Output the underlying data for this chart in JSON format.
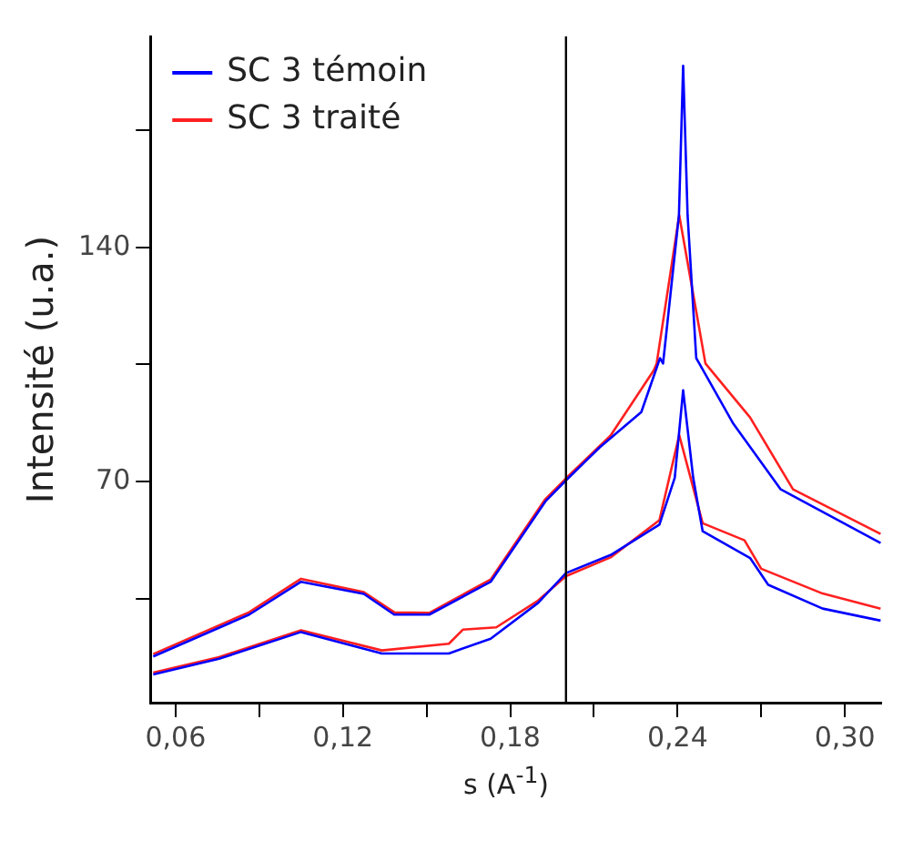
{
  "chart_data": {
    "type": "line",
    "xlabel": "s (A$^{-1}$)",
    "ylabel": "Intensité (u.a.)",
    "xlim": [
      0.051,
      0.313
    ],
    "ylim": [
      4,
      203
    ],
    "xticks": [
      {
        "value": 0.06,
        "label": "0,06"
      },
      {
        "value": 0.09,
        "label": null
      },
      {
        "value": 0.12,
        "label": "0,12"
      },
      {
        "value": 0.15,
        "label": null
      },
      {
        "value": 0.18,
        "label": "0,18"
      },
      {
        "value": 0.21,
        "label": null
      },
      {
        "value": 0.24,
        "label": "0,24"
      },
      {
        "value": 0.27,
        "label": null
      },
      {
        "value": 0.3,
        "label": "0,30"
      }
    ],
    "yticks": [
      {
        "value": 35,
        "label": null
      },
      70,
      {
        "value": 105,
        "label": null
      },
      140,
      {
        "value": 175,
        "label": null
      }
    ],
    "grid": false,
    "legend": "top left",
    "marker": "none",
    "line_style": "solid",
    "ref_lines": [
      {
        "axis": "x",
        "value": 0.2,
        "color": "#000000"
      }
    ],
    "series": [
      {
        "name": "SC 3 témoin",
        "color": "#0000ff",
        "x": [
          0.052,
          0.0864,
          0.105,
          0.1275,
          0.1384,
          0.151,
          0.173,
          0.1926,
          0.2,
          0.212,
          0.227,
          0.2337,
          0.2348,
          0.2405,
          0.242,
          0.2436,
          0.2467,
          0.2478,
          0.26,
          0.277,
          0.3128
        ],
        "values": [
          17.8,
          30.3,
          40.1,
          36.5,
          30.3,
          30.3,
          40.1,
          64.1,
          70.4,
          80.2,
          90.8,
          106.9,
          105.3,
          149.6,
          194.2,
          149.6,
          106.9,
          105.3,
          87.3,
          67.7,
          51.7
        ]
      },
      {
        "name": "SC 3 traité",
        "color": "#ff2020",
        "x": [
          0.052,
          0.0864,
          0.105,
          0.1275,
          0.1384,
          0.151,
          0.173,
          0.1926,
          0.2,
          0.216,
          0.2315,
          0.2325,
          0.2406,
          0.25,
          0.266,
          0.2814,
          0.3128
        ],
        "values": [
          18.5,
          31,
          41,
          37,
          31,
          30.8,
          40.8,
          64.8,
          71,
          83.8,
          103.3,
          105.3,
          149.6,
          105.3,
          89.2,
          67.7,
          54.4
        ]
      },
      {
        "color": "#0000ff",
        "x": [
          0.052,
          0.0756,
          0.105,
          0.134,
          0.158,
          0.173,
          0.19,
          0.2,
          0.216,
          0.2335,
          0.239,
          0.242,
          0.2456,
          0.249,
          0.266,
          0.2725,
          0.292,
          0.3128
        ],
        "values": [
          12.4,
          17.1,
          25.1,
          18.7,
          18.7,
          23.1,
          33.8,
          42.7,
          48.1,
          57.2,
          71.2,
          97.3,
          71.2,
          55.2,
          47.2,
          39.2,
          32.1,
          28.5
        ]
      },
      {
        "color": "#ff2020",
        "x": [
          0.052,
          0.0756,
          0.105,
          0.134,
          0.158,
          0.163,
          0.175,
          0.19,
          0.2,
          0.216,
          0.2335,
          0.2406,
          0.249,
          0.264,
          0.27,
          0.292,
          0.3128
        ],
        "values": [
          13,
          17.6,
          25.6,
          19.6,
          21.6,
          25.8,
          26.5,
          34.5,
          41.8,
          47.4,
          58.5,
          83.9,
          57.6,
          52.5,
          44,
          36.6,
          32.1
        ]
      }
    ]
  }
}
